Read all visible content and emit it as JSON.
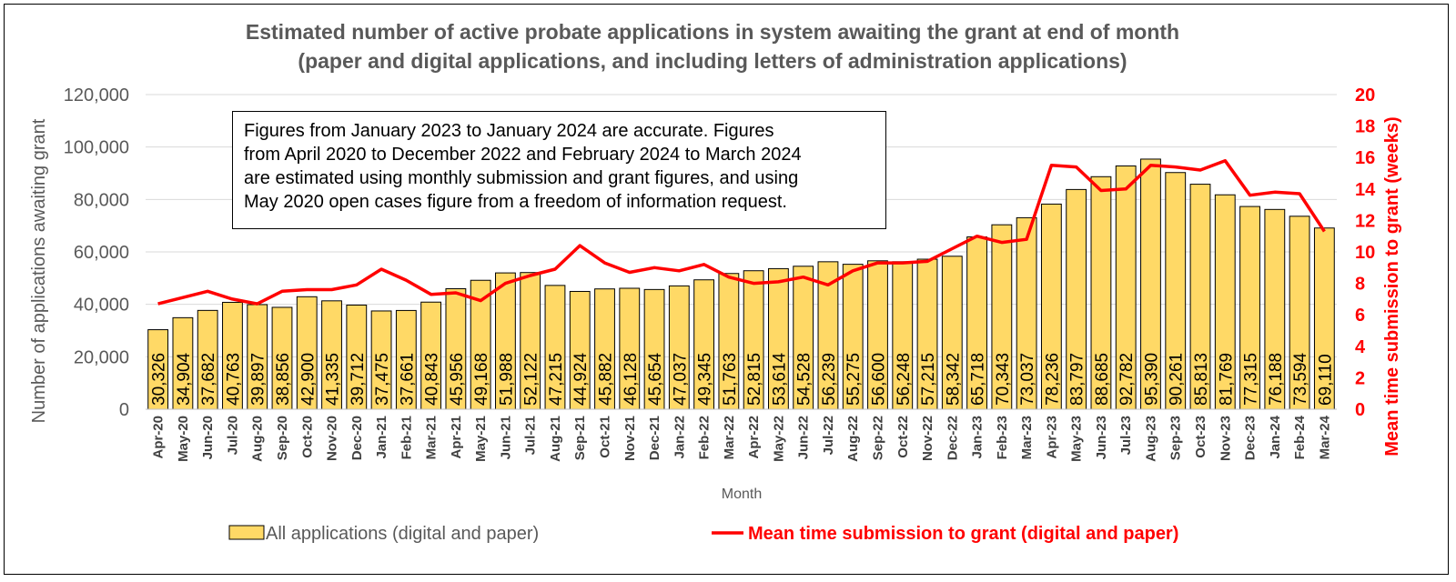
{
  "chart_data": {
    "type": "bar+line",
    "title_lines": [
      "Estimated number of active probate applications in system awaiting the grant at end of month",
      "(paper and digital applications, and including letters of administration applications)"
    ],
    "xlabel": "Month",
    "ylabel_left": "Number of applications awaiting grant",
    "ylabel_right": "Mean time submission to grant (weeks)",
    "ylim_left": [
      0,
      120000
    ],
    "ylim_right": [
      0,
      20
    ],
    "yticks_left": [
      "0",
      "20,000",
      "40,000",
      "60,000",
      "80,000",
      "100,000",
      "120,000"
    ],
    "yticks_right": [
      "0",
      "2",
      "4",
      "6",
      "8",
      "10",
      "12",
      "14",
      "16",
      "18",
      "20"
    ],
    "grid": true,
    "legend_position": "bottom",
    "categories": [
      "Apr-20",
      "May-20",
      "Jun-20",
      "Jul-20",
      "Aug-20",
      "Sep-20",
      "Oct-20",
      "Nov-20",
      "Dec-20",
      "Jan-21",
      "Feb-21",
      "Mar-21",
      "Apr-21",
      "May-21",
      "Jun-21",
      "Jul-21",
      "Aug-21",
      "Sep-21",
      "Oct-21",
      "Nov-21",
      "Dec-21",
      "Jan-22",
      "Feb-22",
      "Mar-22",
      "Apr-22",
      "May-22",
      "Jun-22",
      "Jul-22",
      "Aug-22",
      "Sep-22",
      "Oct-22",
      "Nov-22",
      "Dec-22",
      "Jan-23",
      "Feb-23",
      "Mar-23",
      "Apr-23",
      "May-23",
      "Jun-23",
      "Jul-23",
      "Aug-23",
      "Sep-23",
      "Oct-23",
      "Nov-23",
      "Dec-23",
      "Jan-24",
      "Feb-24",
      "Mar-24"
    ],
    "series": [
      {
        "name": "All applications (digital and paper)",
        "type": "bar",
        "axis": "left",
        "color": "#ffd966",
        "values": [
          30326,
          34904,
          37682,
          40763,
          39897,
          38856,
          42900,
          41335,
          39712,
          37475,
          37661,
          40843,
          45956,
          49168,
          51988,
          52122,
          47215,
          44924,
          45882,
          46128,
          45654,
          47037,
          49345,
          51763,
          52815,
          53614,
          54528,
          56239,
          55275,
          56600,
          56248,
          57215,
          58342,
          65718,
          70343,
          73037,
          78236,
          83797,
          88685,
          92782,
          95390,
          90261,
          85813,
          81769,
          77315,
          76188,
          73594,
          69110
        ],
        "labels": [
          "30,326",
          "34,904",
          "37,682",
          "40,763",
          "39,897",
          "38,856",
          "42,900",
          "41,335",
          "39,712",
          "37,475",
          "37,661",
          "40,843",
          "45,956",
          "49,168",
          "51,988",
          "52,122",
          "47,215",
          "44,924",
          "45,882",
          "46,128",
          "45,654",
          "47,037",
          "49,345",
          "51,763",
          "52,815",
          "53,614",
          "54,528",
          "56,239",
          "55,275",
          "56,600",
          "56,248",
          "57,215",
          "58,342",
          "65,718",
          "70,343",
          "73,037",
          "78,236",
          "83,797",
          "88,685",
          "92,782",
          "95,390",
          "90,261",
          "85,813",
          "81,769",
          "77,315",
          "76,188",
          "73,594",
          "69,110"
        ]
      },
      {
        "name": "Mean time submission to grant (digital and paper)",
        "type": "line",
        "axis": "right",
        "color": "#ff0000",
        "values": [
          6.7,
          7.1,
          7.5,
          7.0,
          6.7,
          7.5,
          7.6,
          7.6,
          7.9,
          8.9,
          8.2,
          7.3,
          7.4,
          6.9,
          8.0,
          8.5,
          8.9,
          10.4,
          9.3,
          8.7,
          9.0,
          8.8,
          9.2,
          8.4,
          8.0,
          8.1,
          8.4,
          7.9,
          8.8,
          9.3,
          9.3,
          9.4,
          10.2,
          11.0,
          10.6,
          10.8,
          15.5,
          15.4,
          13.9,
          14.0,
          15.5,
          15.4,
          15.2,
          15.8,
          13.6,
          13.8,
          13.7,
          11.3
        ]
      }
    ],
    "note": [
      "Figures from January 2023 to January 2024 are accurate. Figures",
      "from April 2020 to December 2022 and February 2024 to March 2024",
      "are estimated using monthly submission and grant figures, and using",
      "May 2020 open cases figure from a freedom of information request."
    ]
  }
}
